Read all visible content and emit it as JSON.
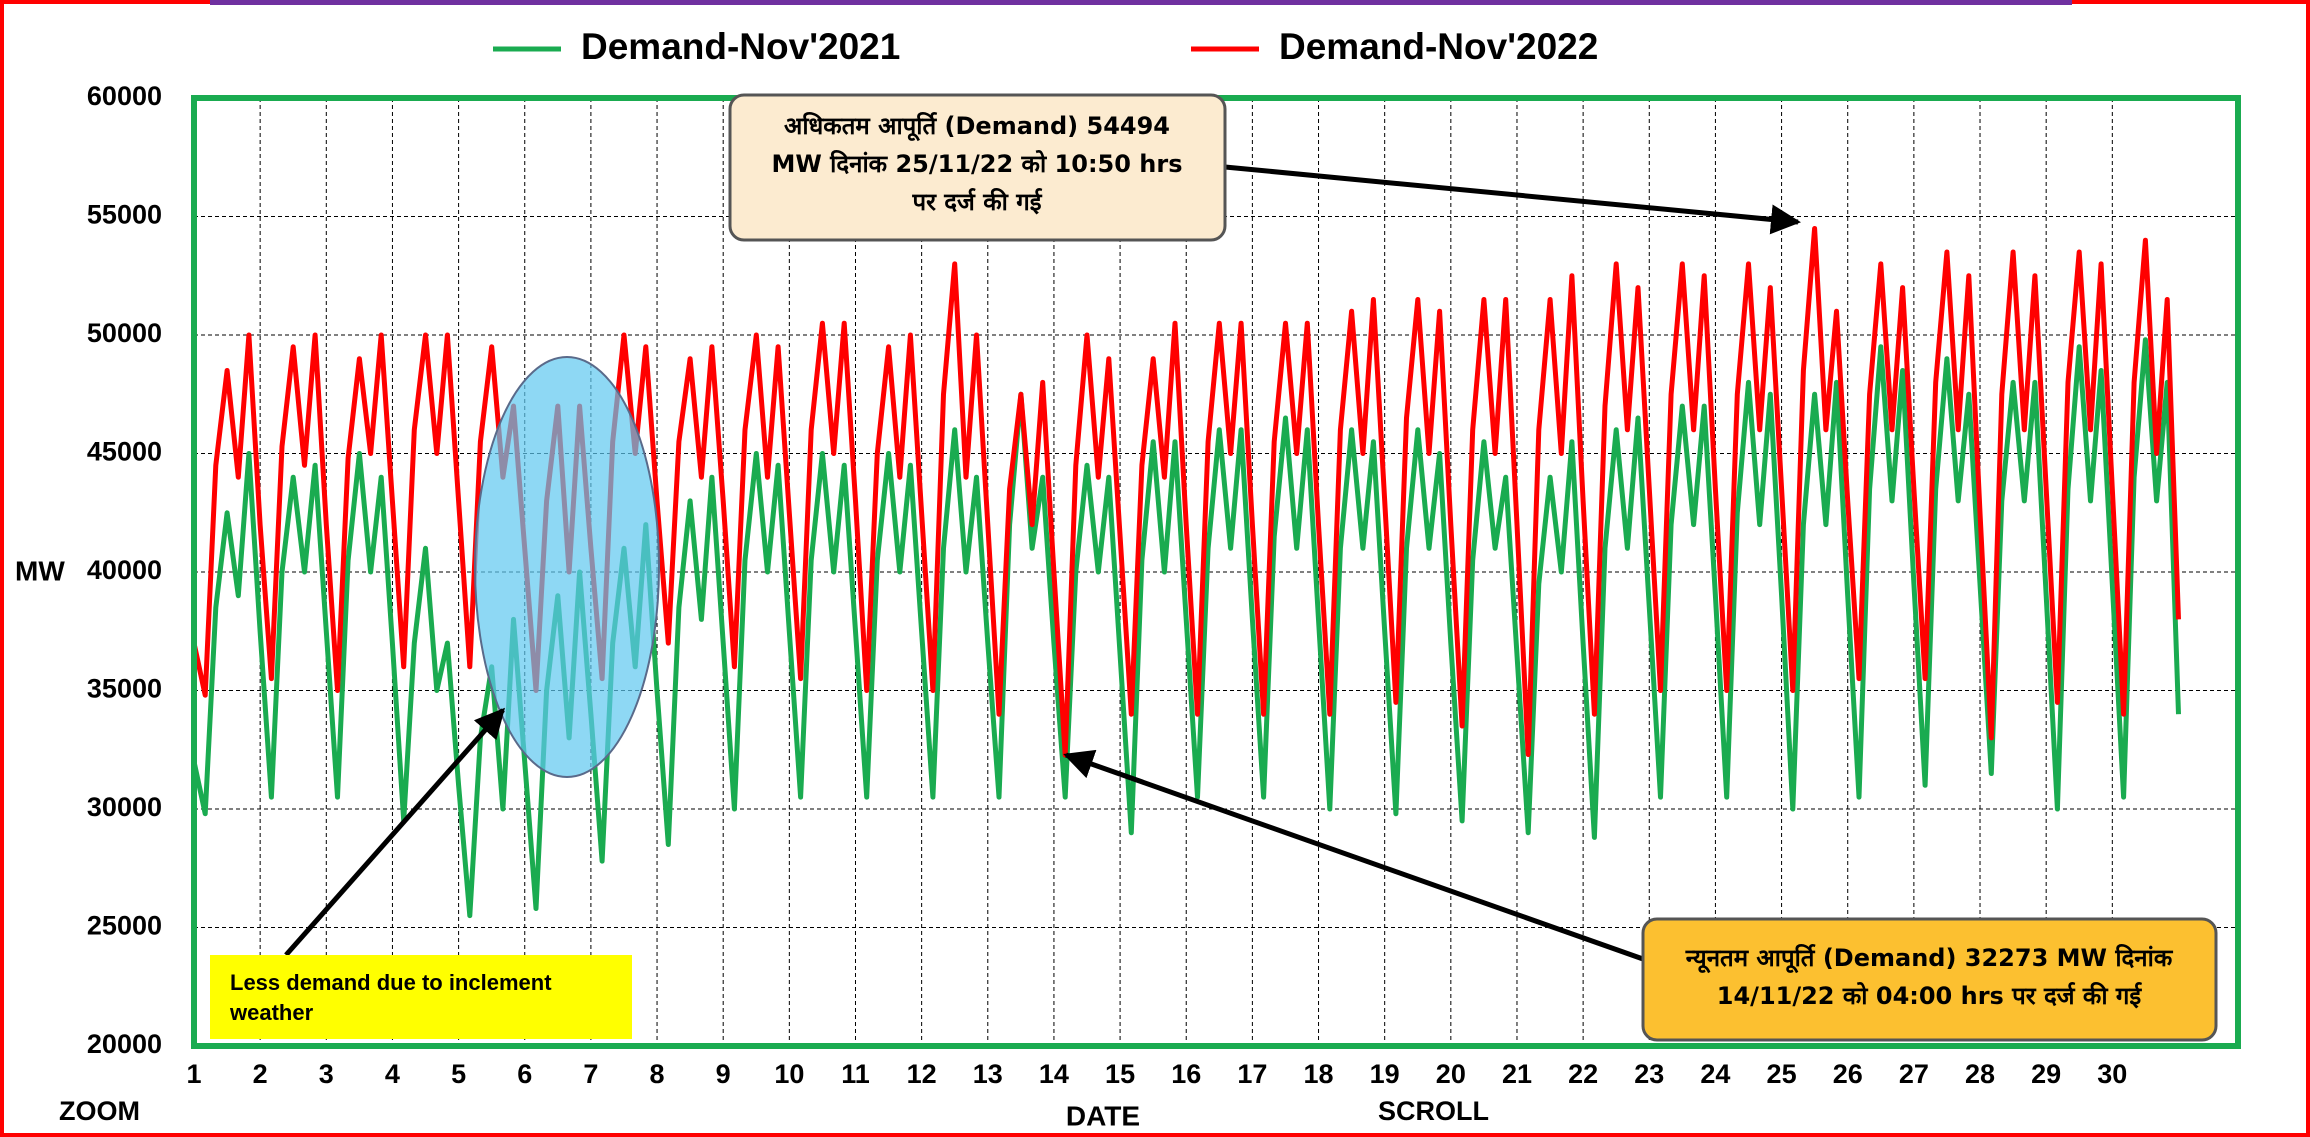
{
  "chart_data": {
    "type": "line",
    "legend": "top",
    "grid": true,
    "x_label": "DATE",
    "y_label": "MW",
    "controls": [
      "ZOOM",
      "SCROLL"
    ],
    "xlim": [
      1,
      31.9
    ],
    "xticks": [
      1,
      2,
      3,
      4,
      5,
      6,
      7,
      8,
      9,
      10,
      11,
      12,
      13,
      14,
      15,
      16,
      17,
      18,
      19,
      20,
      21,
      22,
      23,
      24,
      25,
      26,
      27,
      28,
      29,
      30
    ],
    "ylim": [
      20000,
      60000
    ],
    "yticks": [
      20000,
      25000,
      30000,
      35000,
      40000,
      45000,
      50000,
      55000,
      60000
    ],
    "x": [
      1,
      1.17,
      1.33,
      1.5,
      1.67,
      1.83,
      2,
      2.17,
      2.33,
      2.5,
      2.67,
      2.83,
      3,
      3.17,
      3.33,
      3.5,
      3.67,
      3.83,
      4,
      4.17,
      4.33,
      4.5,
      4.67,
      4.83,
      5,
      5.17,
      5.33,
      5.5,
      5.67,
      5.83,
      6,
      6.17,
      6.33,
      6.5,
      6.67,
      6.83,
      7,
      7.17,
      7.33,
      7.5,
      7.67,
      7.83,
      8,
      8.17,
      8.33,
      8.5,
      8.67,
      8.83,
      9,
      9.17,
      9.33,
      9.5,
      9.67,
      9.83,
      10,
      10.17,
      10.33,
      10.5,
      10.67,
      10.83,
      11,
      11.17,
      11.33,
      11.5,
      11.67,
      11.83,
      12,
      12.17,
      12.33,
      12.5,
      12.67,
      12.83,
      13,
      13.17,
      13.33,
      13.5,
      13.67,
      13.83,
      14,
      14.17,
      14.33,
      14.5,
      14.67,
      14.83,
      15,
      15.17,
      15.33,
      15.5,
      15.67,
      15.83,
      16,
      16.17,
      16.33,
      16.5,
      16.67,
      16.83,
      17,
      17.17,
      17.33,
      17.5,
      17.67,
      17.83,
      18,
      18.17,
      18.33,
      18.5,
      18.67,
      18.83,
      19,
      19.17,
      19.33,
      19.5,
      19.67,
      19.83,
      20,
      20.17,
      20.33,
      20.5,
      20.67,
      20.83,
      21,
      21.17,
      21.33,
      21.5,
      21.67,
      21.83,
      22,
      22.17,
      22.33,
      22.5,
      22.67,
      22.83,
      23,
      23.17,
      23.33,
      23.5,
      23.67,
      23.83,
      24,
      24.17,
      24.33,
      24.5,
      24.67,
      24.83,
      25,
      25.17,
      25.33,
      25.5,
      25.67,
      25.83,
      26,
      26.17,
      26.33,
      26.5,
      26.67,
      26.83,
      27,
      27.17,
      27.33,
      27.5,
      27.67,
      27.83,
      28,
      28.17,
      28.33,
      28.5,
      28.67,
      28.83,
      29,
      29.17,
      29.33,
      29.5,
      29.67,
      29.83,
      30,
      30.17,
      30.33,
      30.5,
      30.67,
      30.83,
      31
    ],
    "series": [
      {
        "name": "Demand-Nov'2021",
        "color": "#1aab50",
        "values": [
          32000,
          29800,
          38500,
          42500,
          39000,
          45000,
          37500,
          30500,
          40000,
          44000,
          40000,
          44500,
          37500,
          30500,
          40500,
          45000,
          40000,
          44000,
          37000,
          29500,
          37000,
          41000,
          35000,
          37000,
          31000,
          25500,
          33000,
          36000,
          30000,
          38000,
          32000,
          25800,
          35000,
          39000,
          33000,
          40000,
          34000,
          27800,
          37000,
          41000,
          36000,
          42000,
          35000,
          28500,
          38500,
          43000,
          38000,
          44000,
          37000,
          30000,
          40500,
          45000,
          40000,
          44500,
          37500,
          30500,
          40500,
          45000,
          40000,
          44500,
          37500,
          30500,
          40500,
          45000,
          40000,
          44500,
          37500,
          30500,
          41000,
          46000,
          40000,
          44000,
          37000,
          30500,
          42000,
          47500,
          41000,
          44000,
          37000,
          30500,
          40000,
          44500,
          40000,
          44000,
          36500,
          29000,
          40500,
          45500,
          40000,
          45500,
          38000,
          30500,
          41000,
          46000,
          41000,
          46000,
          38000,
          30500,
          41500,
          46500,
          41000,
          46000,
          38000,
          30000,
          41000,
          46000,
          41000,
          45500,
          37500,
          29800,
          41000,
          46000,
          41000,
          45000,
          37000,
          29500,
          40500,
          45500,
          41000,
          44000,
          36500,
          29000,
          39500,
          44000,
          40000,
          45500,
          37000,
          28800,
          41000,
          46000,
          41000,
          46500,
          38500,
          30500,
          42000,
          47000,
          42000,
          47000,
          39000,
          30500,
          42500,
          48000,
          42000,
          47500,
          39000,
          30000,
          42000,
          47500,
          42000,
          48000,
          39000,
          30500,
          43500,
          49500,
          43000,
          48500,
          39500,
          31000,
          43500,
          49000,
          43000,
          47500,
          39500,
          31500,
          43000,
          48000,
          43000,
          48000,
          39000,
          30000,
          43500,
          49500,
          43000,
          48500,
          39500,
          30500,
          44000,
          49800,
          43000,
          48000,
          34000
        ]
      },
      {
        "name": "Demand-Nov'2022",
        "color": "#ff0000",
        "values": [
          37000,
          34800,
          44500,
          48500,
          44000,
          50000,
          42000,
          35500,
          45300,
          49500,
          44500,
          50000,
          42000,
          35000,
          44800,
          49000,
          45000,
          50000,
          43000,
          36000,
          46000,
          50000,
          45000,
          50000,
          43000,
          36000,
          45500,
          49500,
          44000,
          47000,
          41000,
          35000,
          43000,
          47000,
          40000,
          47000,
          41000,
          35500,
          45500,
          50000,
          45000,
          49500,
          43000,
          37000,
          45500,
          49000,
          44000,
          49500,
          43000,
          36000,
          46000,
          50000,
          44000,
          49500,
          42500,
          35500,
          46000,
          50500,
          45000,
          50500,
          43000,
          35000,
          45000,
          49500,
          44000,
          50000,
          42500,
          35000,
          47500,
          53000,
          44000,
          50000,
          42000,
          34000,
          43500,
          47500,
          42000,
          48000,
          40000,
          32273,
          44500,
          50000,
          44000,
          49000,
          41500,
          34000,
          44500,
          49000,
          44000,
          50500,
          42000,
          34000,
          45500,
          50500,
          45000,
          50500,
          42000,
          34000,
          45500,
          50500,
          45000,
          50500,
          42000,
          34000,
          46000,
          51000,
          45000,
          51500,
          43000,
          34500,
          46500,
          51500,
          45000,
          51000,
          42000,
          33500,
          46000,
          51500,
          45000,
          51500,
          42000,
          32300,
          46000,
          51500,
          45000,
          52500,
          43000,
          34000,
          47000,
          53000,
          46000,
          52000,
          43500,
          35000,
          47500,
          53000,
          46000,
          52500,
          43500,
          35000,
          47500,
          53000,
          46000,
          52000,
          43500,
          35000,
          48500,
          54494,
          46000,
          51000,
          43000,
          35500,
          47500,
          53000,
          46000,
          52000,
          43500,
          35500,
          48000,
          53500,
          46000,
          52500,
          42500,
          33000,
          47500,
          53500,
          46000,
          52500,
          43500,
          34500,
          48000,
          53500,
          46000,
          53000,
          43500,
          34000,
          48000,
          54000,
          45000,
          51500,
          38000
        ]
      }
    ],
    "annotations": [
      {
        "lines": [
          "अधिकतम आपूर्ति (Demand) 54494",
          "MW दिनांक 25/11/22 को 10:50 hrs",
          "पर दर्ज की गई"
        ]
      },
      {
        "lines": [
          "न्यूनतम आपूर्ति (Demand) 32273 MW दिनांक",
          "14/11/22 को 04:00 hrs पर दर्ज की गई"
        ]
      },
      {
        "lines": [
          "Less demand due to inclement",
          "weather"
        ]
      }
    ]
  }
}
